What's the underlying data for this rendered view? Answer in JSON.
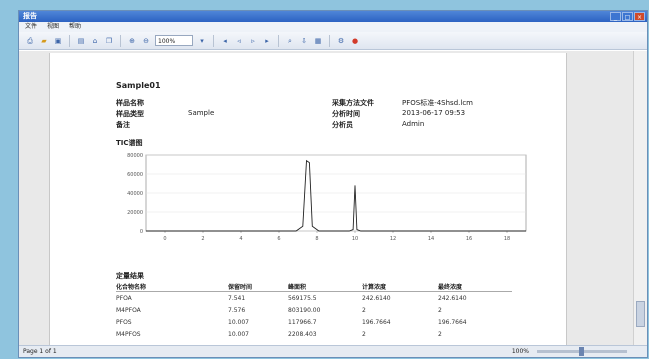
{
  "window": {
    "title": "报告"
  },
  "menu": [
    "文件",
    "视图",
    "帮助"
  ],
  "toolbar": {
    "zoom": "100%"
  },
  "report": {
    "sample_name": "Sample01",
    "info_left": [
      {
        "label": "样品名称",
        "value": ""
      },
      {
        "label": "样品类型",
        "value": "Sample"
      },
      {
        "label": "备注",
        "value": ""
      }
    ],
    "info_right": [
      {
        "label": "采集方法文件",
        "value": "PFOS标准-4Shsd.lcm"
      },
      {
        "label": "分析时间",
        "value": "2013-06-17 09:53"
      },
      {
        "label": "分析员",
        "value": "Admin"
      }
    ],
    "chart_section": "TIC谱图",
    "results_section": "定量结果",
    "table": {
      "headers": [
        "化合物名称",
        "保留时间",
        "峰面积",
        "计算浓度",
        "最终浓度"
      ],
      "rows": [
        [
          "PFOA",
          "7.541",
          "569175.5",
          "242.6140",
          "242.6140"
        ],
        [
          "M4PFOA",
          "7.576",
          "803190.00",
          "2",
          "2"
        ],
        [
          "PFOS",
          "10.007",
          "117966.7",
          "196.7664",
          "196.7664"
        ],
        [
          "M4PFOS",
          "10.007",
          "2208.403",
          "2",
          "2"
        ]
      ]
    }
  },
  "status": {
    "page": "Page 1 of 1",
    "zoom": "100%"
  },
  "chart_data": {
    "type": "line",
    "x_ticks": [
      "0",
      "2",
      "4",
      "6",
      "8",
      "10",
      "12",
      "14",
      "16",
      "18"
    ],
    "y_ticks": [
      "80000",
      "60000",
      "40000",
      "20000",
      "0"
    ],
    "xlim": [
      -1,
      19
    ],
    "ylim": [
      0,
      80000
    ],
    "grid": true,
    "series": [
      {
        "x": [
          -1,
          6.9,
          7.25,
          7.45,
          7.6,
          7.75,
          8.1,
          9.7,
          9.9,
          10.0,
          10.1,
          10.3,
          19
        ],
        "y": [
          0,
          0,
          5000,
          74000,
          72000,
          5000,
          0,
          0,
          1500,
          48000,
          1500,
          0,
          0
        ]
      }
    ]
  }
}
